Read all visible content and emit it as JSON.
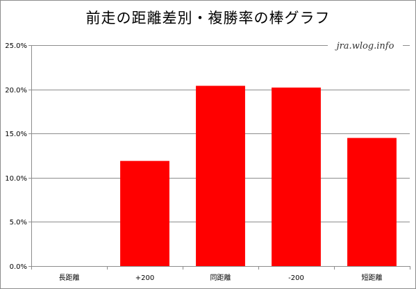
{
  "chart_data": {
    "type": "bar",
    "title": "前走の距離差別・複勝率の棒グラフ",
    "watermark": "jra.wlog.info",
    "categories": [
      "長距離",
      "+200",
      "同距離",
      "-200",
      "短距離"
    ],
    "values": [
      0.0,
      11.9,
      20.4,
      20.2,
      14.5
    ],
    "y_tick_labels": [
      "0.0%",
      "5.0%",
      "10.0%",
      "15.0%",
      "20.0%",
      "25.0%"
    ],
    "ylim": [
      0,
      25
    ],
    "ytick_step": 5,
    "grid": true,
    "legend": "none",
    "bar_color": "#ff0000"
  }
}
